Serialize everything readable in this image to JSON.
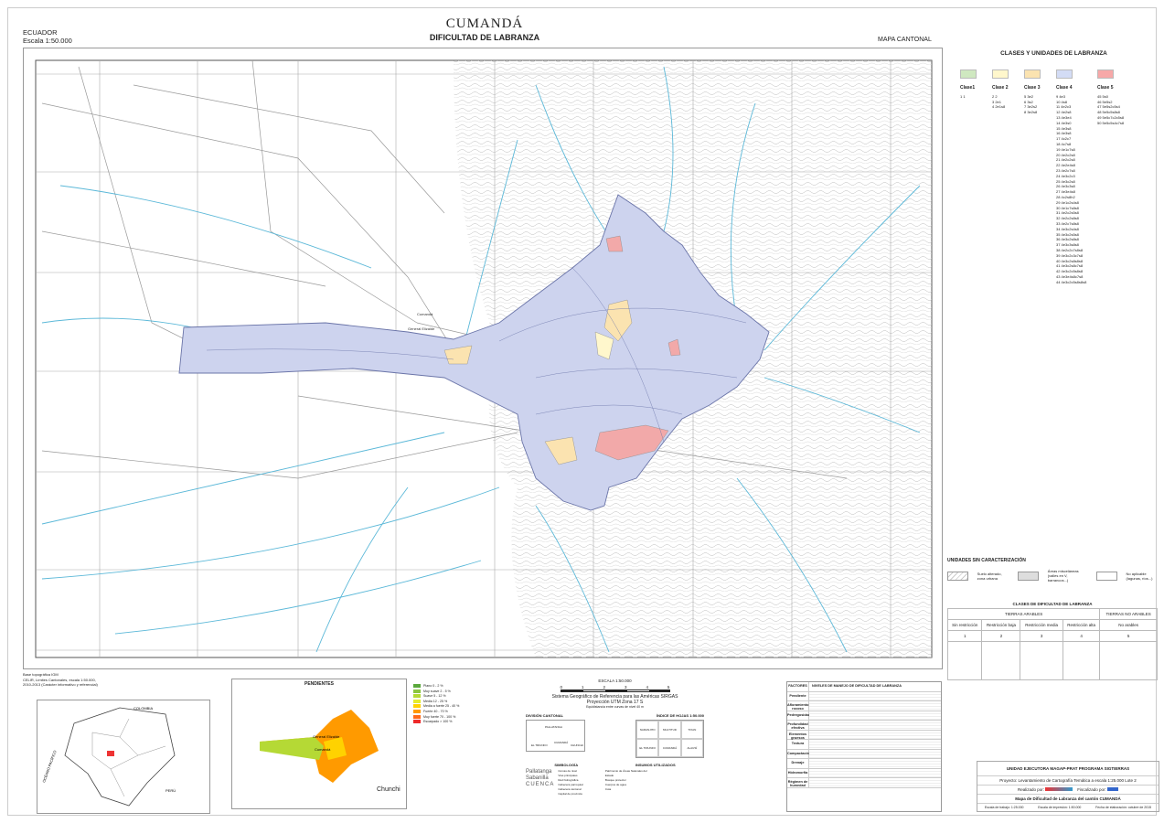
{
  "header": {
    "title": "CUMANDÁ",
    "subtitle": "DIFICULTAD DE LABRANZA",
    "country": "ECUADOR",
    "scale": "Escala 1:50.000",
    "map_type": "MAPA CANTONAL"
  },
  "map": {
    "places": [
      "Cumandá",
      "General Elizalde"
    ],
    "colors": {
      "class1": "#cfe8c0",
      "class2": "#fff7cc",
      "class3": "#fbe3b0",
      "class4": "#cdd3ee",
      "class5": "#f2a9a9",
      "river": "#5bb8d8"
    }
  },
  "legend": {
    "title": "CLASES Y UNIDADES DE LABRANZA",
    "classes": [
      {
        "label": "Clase1",
        "color": "#cfe8c0",
        "units": [
          "1 1"
        ]
      },
      {
        "label": "Clase 2",
        "color": "#fff7cc",
        "units": [
          "2 2",
          "3 2e1",
          "4 2e1s8"
        ]
      },
      {
        "label": "Clase 3",
        "color": "#fbe3b0",
        "units": [
          "5 3e2",
          "6 3s2",
          "7 3e2s2",
          "8 3e2s8"
        ]
      },
      {
        "label": "Clase 4",
        "color": "#d3dcf5",
        "units": [
          "9 4e3",
          "10 4s8",
          "11 4e2c3",
          "12 4e2s8",
          "13 4e3e4",
          "14 4e3s0",
          "15 4e3s8",
          "16 4e3s8",
          "17 4c2c7",
          "18 4c7s8",
          "19 4e1c7s8",
          "20 4e2c2s8",
          "21 4e2c2s8",
          "22 4e2e4s8",
          "23 4e2c7s8",
          "24 4e3c2c3",
          "25 4e3c2s8",
          "26 4e3c3s8",
          "27 4e3e4s8",
          "28 4c2s8h2",
          "29 4e1c2s4s8",
          "30 4e1c7s8s8",
          "31 4e2c2s5s8",
          "32 4e2c2s8s8",
          "33 4e2c7s8s8",
          "34 4e3c2s4s8",
          "35 4e3c2s5s8",
          "36 4e3c2s8s8",
          "37 4e3c3s8s8",
          "38 4e2c2c7s8s8",
          "39 4e3c2c3c7s8",
          "40 4e3c2s8s8s8",
          "41 4e3c2s8c7s8",
          "42 4e3c2c5s8s8",
          "43 4e3e4s8c7s8",
          "44 4e3c2c5s8s8s8"
        ]
      },
      {
        "label": "Clase 5",
        "color": "#f7a8a8",
        "units": [
          "45 5s0",
          "46 5e5s2",
          "47 5e5s2c5s4",
          "48 5e5c5s8s8",
          "49 5e5c7c2c5s8",
          "50 5e5c5s4c7s8"
        ]
      }
    ]
  },
  "sin_caracterizacion": {
    "title": "UNIDADES SIN CARACTERIZACIÓN",
    "items": [
      "Suelo alterado, zona urbana",
      "Áreas misceláneas (valles en V, barrancos...)",
      "No aplicable (lagunas, ríos...)"
    ]
  },
  "dificultad": {
    "title": "CLASES DE DIFICULTAD DE LABRANZA",
    "groups": [
      "TIERRAS ARABLES",
      "TIERRAS NO ARABLES"
    ],
    "columns": [
      "Sin restricción",
      "Restricción baja",
      "Restricción media",
      "Restricción alta",
      "No arables"
    ],
    "numbers": [
      "1",
      "2",
      "3",
      "4",
      "5"
    ]
  },
  "pendientes": {
    "title": "PENDIENTES",
    "places": [
      "General Elizalde",
      "Cumandá",
      "Chunchi"
    ],
    "items": [
      {
        "label": "Plano 0 - 2 %",
        "color": "#5aa83c"
      },
      {
        "label": "Muy suave 2 - 5 %",
        "color": "#8cc63f"
      },
      {
        "label": "Suave 5 - 12 %",
        "color": "#b5d935"
      },
      {
        "label": "Media 12 - 25 %",
        "color": "#e4ec2c"
      },
      {
        "label": "Media a fuerte 25 - 40 %",
        "color": "#ffd200"
      },
      {
        "label": "Fuerte 40 - 70 %",
        "color": "#ff9a00"
      },
      {
        "label": "Muy fuerte 70 - 100 %",
        "color": "#ff6a1a"
      },
      {
        "label": "Escarpado > 100 %",
        "color": "#ee2a2a"
      }
    ]
  },
  "inset": {
    "labels": [
      "COLOMBIA",
      "PERÚ",
      "OCÉANO PACÍFICO"
    ]
  },
  "scalebar": {
    "title": "ESCALA 1:50.000",
    "ticks": [
      "0",
      "1",
      "2",
      "3",
      "4",
      "5"
    ],
    "unit": "km",
    "datum": "Sistema Geográfico de Referencia para las Américas SIRGAS",
    "projection": "Proyección UTM Zona 17 S",
    "contours": "Equidistancia entre curvas de nivel 40 m"
  },
  "division": {
    "title": "DIVISIÓN CANTONAL",
    "cantons": [
      "CUMANDÁ",
      "EL TRIUNFO",
      "PALLATANGA",
      "CHUNCHI"
    ]
  },
  "indice": {
    "title": "ÍNDICE DE HOJAS 1:50.000",
    "sheets": [
      "NARANJITO",
      "MULTITUD",
      "TIXAN",
      "EL TRIUNFO",
      "CUMANDÁ",
      "ALAUSÍ"
    ]
  },
  "simbologia": {
    "title": "SIMBOLOGÍA",
    "items": [
      "Curvas de nivel",
      "Vías principales",
      "Red hidrográfica",
      "Cabecera parroquial",
      "Cabecera cantonal",
      "Capital de provincia",
      "Patrimonio de Áreas Naturales del Estado",
      "Bosque protector",
      "Cuerpos de agua",
      "Cota"
    ],
    "samples": [
      "Pallatanga",
      "Sabanilla",
      "CUENCA"
    ]
  },
  "insumos": {
    "title": "INSUMOS UTILIZADOS"
  },
  "table": {
    "header": "FACTORES",
    "header2": "NIVELES DE MANEJO DE DIFICULTAD DE LABRANZA",
    "rows": [
      "Pendiente",
      "Afloramiento rocoso",
      "Pedregosidad",
      "Profundidad efectiva",
      "Elementos gruesos",
      "Textura",
      "Compactación",
      "Drenaje",
      "Hidromorfía",
      "Régimen de humedad"
    ]
  },
  "notes": {
    "base": "Base topográfica IGM",
    "limits": "CELIR, Límites Cantonales, escala 1:50.000, 2010-2013 (Carácter informativo y referencial)"
  },
  "credits": {
    "unit": "UNIDAD EJECUTORA MAGAP-PRAT PROGRAMA SIGTIERRAS",
    "project": "Proyecto: Levantamiento de Cartografía Temática a escala 1:25.000 Lote 2",
    "made_by": "Realizado por:",
    "supervised_by": "Fiscalizado por:",
    "map_name": "Mapa de Dificultad de Labranza del cantón CUMANDÁ",
    "scale_work": "Escala de trabajo: 1:25.000",
    "scale_print": "Escala de impresión: 1:50.000",
    "date": "Fecha de elaboración: octubre de 2015"
  }
}
